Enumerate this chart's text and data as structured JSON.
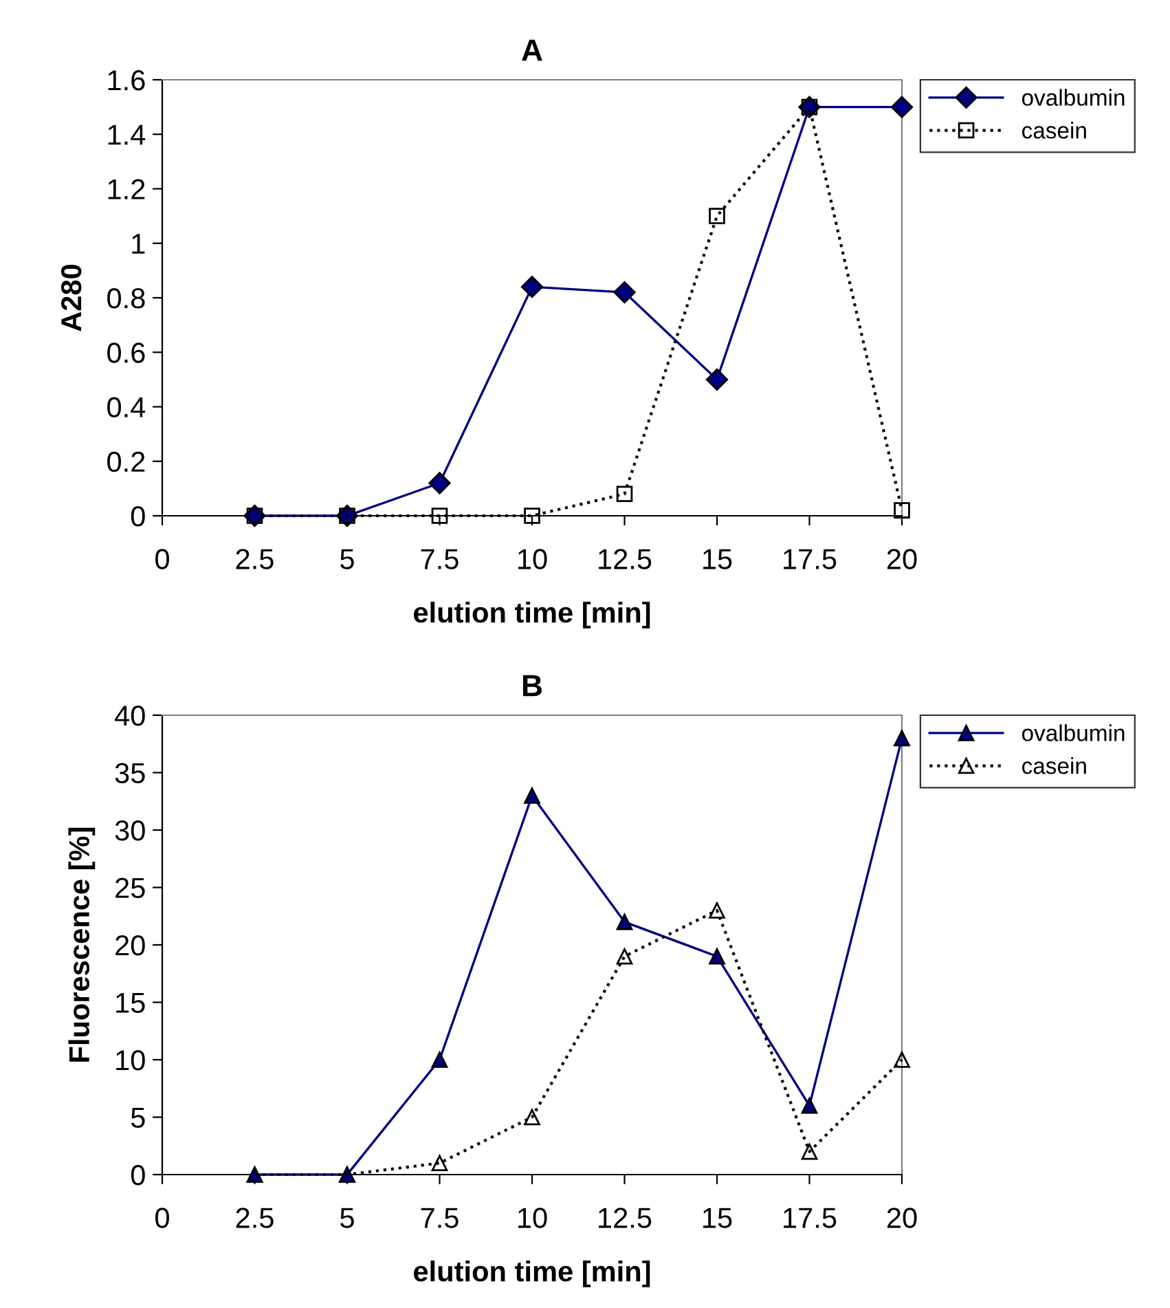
{
  "chart_data": [
    {
      "type": "line",
      "title": "A",
      "xlabel": "elution time [min]",
      "ylabel": "A280",
      "x": [
        2.5,
        5,
        7.5,
        10,
        12.5,
        15,
        17.5,
        20
      ],
      "xlim": [
        0,
        20
      ],
      "xticks": [
        0,
        2.5,
        5,
        7.5,
        10,
        12.5,
        15,
        17.5,
        20
      ],
      "ylim": [
        0,
        1.6
      ],
      "yticks": [
        0,
        {
          "value": 0.2,
          "label": "0.2"
        },
        {
          "value": 0.4,
          "label": "0.4"
        },
        {
          "value": 0.6,
          "label": "0.6"
        },
        {
          "value": 0.8,
          "label": "0.8"
        },
        1,
        {
          "value": 1.2,
          "label": "1.2"
        },
        {
          "value": 1.4,
          "label": "1.4"
        },
        {
          "value": 1.6,
          "label": "1.6"
        }
      ],
      "grid": false,
      "legend": "top right",
      "series": [
        {
          "name": "ovalbumin",
          "color": "#000080",
          "marker": "diamond",
          "line_style": "solid",
          "values": [
            0,
            0,
            0.12,
            0.84,
            0.82,
            0.5,
            1.5,
            1.5
          ]
        },
        {
          "name": "casein",
          "color": "#000000",
          "marker": "square",
          "line_style": "dotted",
          "values": [
            0,
            0,
            0,
            0,
            0.08,
            1.1,
            1.5,
            0.02
          ]
        }
      ]
    },
    {
      "type": "line",
      "title": "B",
      "xlabel": "elution time [min]",
      "ylabel": "Fluorescence [%]",
      "x": [
        2.5,
        5,
        7.5,
        10,
        12.5,
        15,
        17.5,
        20
      ],
      "xlim": [
        0,
        20
      ],
      "xticks": [
        0,
        2.5,
        5,
        7.5,
        10,
        12.5,
        15,
        17.5,
        20
      ],
      "ylim": [
        0,
        40
      ],
      "yticks": [
        0,
        5,
        10,
        15,
        20,
        25,
        30,
        35,
        40
      ],
      "grid": false,
      "legend": "top right",
      "series": [
        {
          "name": "ovalbumin",
          "color": "#000080",
          "marker": "triangle",
          "line_style": "solid",
          "values": [
            0,
            0,
            10,
            33,
            22,
            19,
            6,
            38
          ]
        },
        {
          "name": "casein",
          "color": "#000000",
          "marker": "triangle",
          "line_style": "dotted",
          "values": [
            0,
            0,
            1,
            5,
            19,
            23,
            2,
            10
          ]
        }
      ]
    }
  ]
}
